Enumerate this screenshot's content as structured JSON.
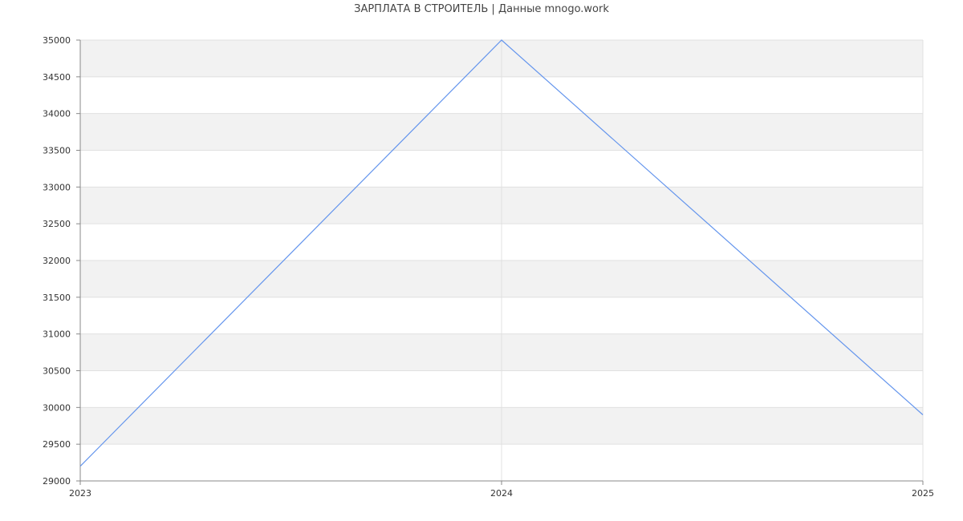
{
  "chart_data": {
    "type": "line",
    "title": "ЗАРПЛАТА В СТРОИТЕЛЬ | Данные mnogo.work",
    "x": [
      "2023",
      "2024",
      "2025"
    ],
    "series": [
      {
        "values": [
          29200,
          35000,
          29900
        ]
      }
    ],
    "ylim": [
      29000,
      35000
    ],
    "yticks": [
      29000,
      29500,
      30000,
      30500,
      31000,
      31500,
      32000,
      32500,
      33000,
      33500,
      34000,
      34500,
      35000
    ],
    "grid": true,
    "legend": "none",
    "colors": {
      "line": "#6495ed",
      "band": "#f2f2f2",
      "grid": "#e0e0e0",
      "axis": "#888888"
    }
  }
}
